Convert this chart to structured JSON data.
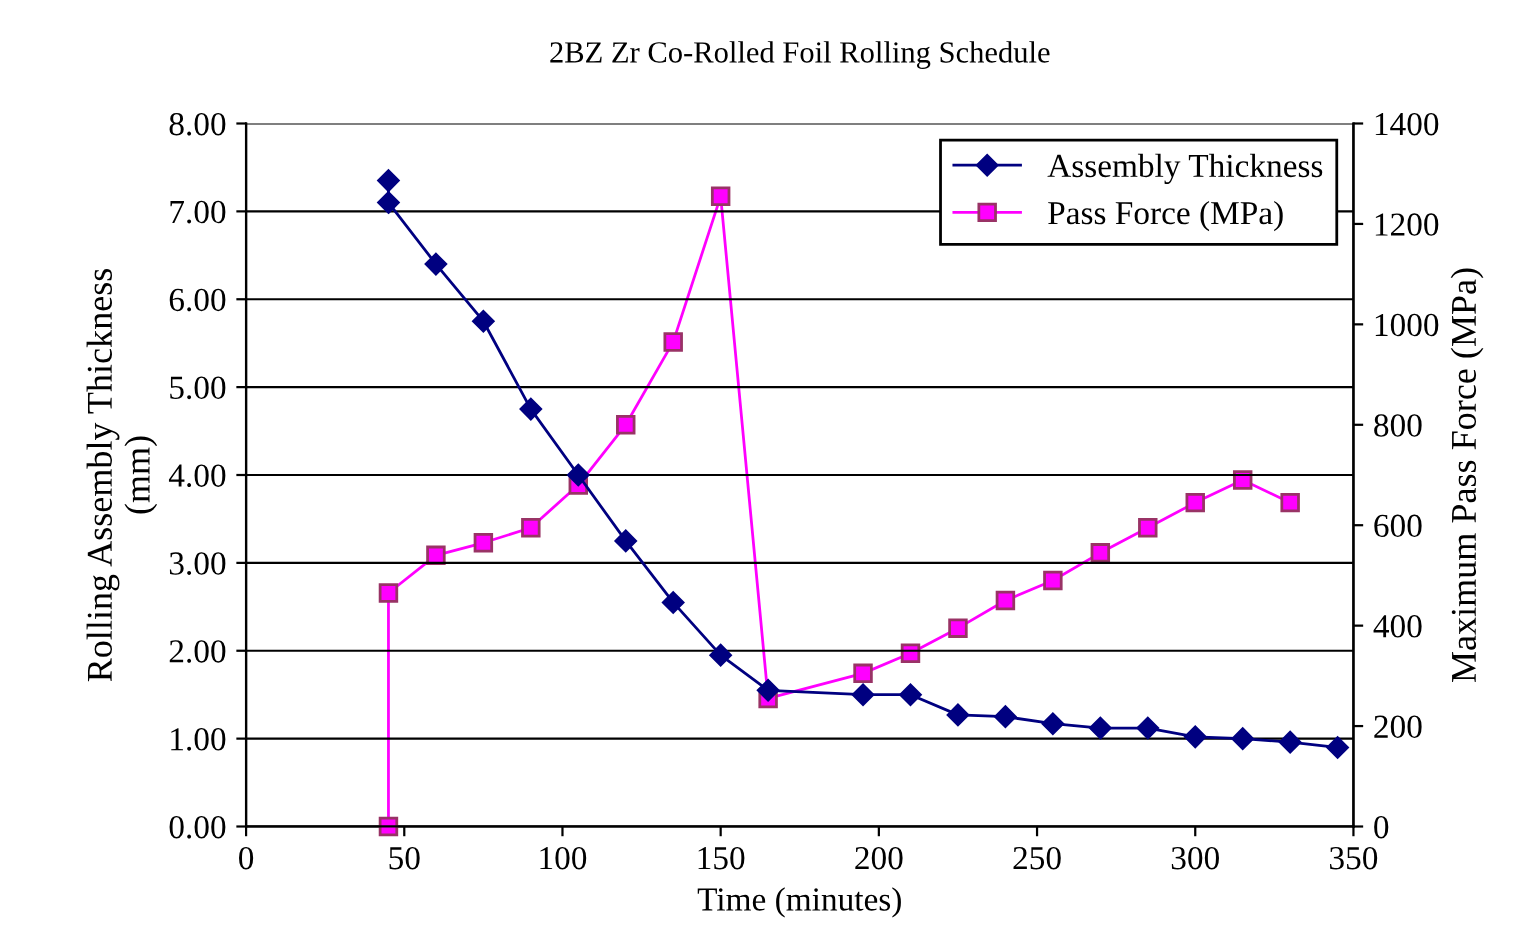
{
  "chart_data": {
    "type": "line",
    "title": "2BZ Zr Co-Rolled Foil Rolling Schedule",
    "xlabel": "Time (minutes)",
    "ylabel": "Rolling Assembly Thickness\n(mm)",
    "y2label": "Maximum Pass Force (MPa)",
    "series": [
      {
        "name": "Assembly Thickness",
        "color": "#000080",
        "marker": "diamond",
        "x": [
          45,
          45,
          60,
          75,
          90,
          105,
          120,
          135,
          150,
          165,
          195,
          210,
          225,
          240,
          255,
          270,
          285,
          300,
          315,
          330,
          345
        ],
        "values": [
          7.35,
          7.1,
          6.4,
          5.75,
          4.75,
          4.0,
          3.25,
          2.55,
          1.95,
          1.55,
          1.5,
          1.5,
          1.27,
          1.25,
          1.17,
          1.12,
          1.12,
          1.02,
          1.0,
          0.96,
          0.9
        ]
      },
      {
        "name": "Pass Force (MPa)",
        "color": "#ff00ff",
        "marker": "square",
        "axis": "y2",
        "x": [
          45,
          45,
          60,
          75,
          90,
          105,
          120,
          135,
          150,
          165,
          195,
          210,
          225,
          240,
          255,
          270,
          285,
          300,
          315,
          330
        ],
        "values": [
          0,
          465,
          540,
          565,
          595,
          680,
          800,
          965,
          1255,
          255,
          305,
          345,
          395,
          450,
          490,
          545,
          595,
          645,
          690,
          645
        ]
      }
    ],
    "xlim": [
      0,
      350
    ],
    "xticks": [
      0,
      50,
      100,
      150,
      200,
      250,
      300,
      350
    ],
    "ylim": [
      0,
      8
    ],
    "yticks": [
      {
        "value": 0,
        "label": "0.00"
      },
      {
        "value": 1,
        "label": "1.00"
      },
      {
        "value": 2,
        "label": "2.00"
      },
      {
        "value": 3,
        "label": "3.00"
      },
      {
        "value": 4,
        "label": "4.00"
      },
      {
        "value": 5,
        "label": "5.00"
      },
      {
        "value": 6,
        "label": "6.00"
      },
      {
        "value": 7,
        "label": "7.00"
      },
      {
        "value": 8,
        "label": "8.00"
      }
    ],
    "y2lim": [
      0,
      1400
    ],
    "y2ticks": [
      0,
      200,
      400,
      600,
      800,
      1000,
      1200,
      1400
    ],
    "grid": "y",
    "legend": "top right",
    "line_style": "solid"
  }
}
